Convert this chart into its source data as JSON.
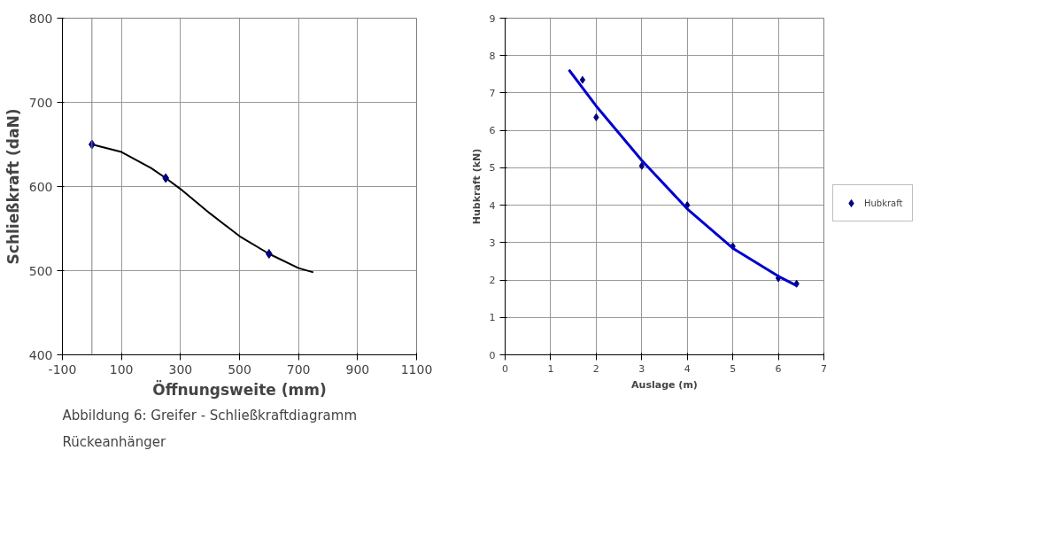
{
  "chart_data": [
    {
      "type": "line",
      "xlabel": "Öffnungsweite (mm)",
      "ylabel": "Schließkraft (daN)",
      "series": [
        {
          "color": "#000000",
          "marker": "none",
          "x": [
            0,
            100,
            200,
            250,
            300,
            400,
            500,
            600,
            700,
            750
          ],
          "values": [
            650,
            641,
            622,
            610,
            597,
            568,
            541,
            520,
            503,
            498
          ]
        },
        {
          "type": "scatter",
          "color": "#000080",
          "marker": "diamond",
          "x": [
            0,
            250,
            600
          ],
          "values": [
            650,
            610,
            520
          ]
        }
      ],
      "xlim": [
        -100,
        1100
      ],
      "xticks": [
        -100,
        100,
        300,
        500,
        700,
        900,
        1100
      ],
      "ylim": [
        400,
        800
      ],
      "yticks": [
        400,
        500,
        600,
        700,
        800
      ],
      "ref_lines": [
        {
          "axis": "x",
          "value": 0,
          "color": "#808080"
        }
      ],
      "grid": true,
      "annotations": [
        "Abbildung 6: Greifer - Schließkraftdiagramm",
        "Rückeanhänger"
      ]
    },
    {
      "type": "line",
      "xlabel": "Auslage (m)",
      "ylabel": "Hubkraft (kN)",
      "series": [
        {
          "name": "Hubkraft",
          "type": "scatter",
          "color": "#000080",
          "marker": "diamond",
          "x": [
            1.7,
            2,
            3,
            4,
            5,
            6,
            6.4
          ],
          "values": [
            7.35,
            6.35,
            5.05,
            4.0,
            2.9,
            2.05,
            1.9
          ]
        },
        {
          "color": "#0000cc",
          "marker": "none",
          "x": [
            1.4,
            2,
            3,
            4,
            5,
            6,
            6.4
          ],
          "values": [
            7.62,
            6.65,
            5.2,
            3.9,
            2.85,
            2.1,
            1.85
          ]
        }
      ],
      "xlim": [
        0,
        7
      ],
      "xticks": [
        0,
        1,
        2,
        3,
        4,
        5,
        6,
        7
      ],
      "ylim": [
        0,
        9
      ],
      "yticks": [
        0,
        1,
        2,
        3,
        4,
        5,
        6,
        7,
        8,
        9
      ],
      "grid": true,
      "legend": "right"
    }
  ]
}
